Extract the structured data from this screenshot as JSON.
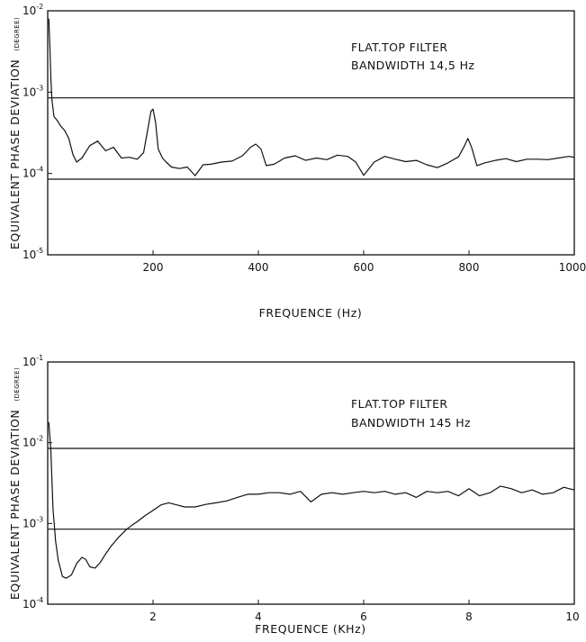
{
  "chart_data": [
    {
      "type": "line",
      "xlabel": "FREQUENCE (Hz)",
      "ylabel": "EQUIVALENT PHASE DEVIATION",
      "ylabel_unit": "(DEGREE)",
      "annotation": [
        "FLAT.TOP  FILTER",
        "BANDWIDTH  14,5 Hz"
      ],
      "log_y": true,
      "xlim": [
        0,
        1000
      ],
      "ylim": [
        1e-05,
        0.01
      ],
      "x_ticks": [
        {
          "value": 200,
          "label": "200"
        },
        {
          "value": 400,
          "label": "400"
        },
        {
          "value": 600,
          "label": "600"
        },
        {
          "value": 800,
          "label": "800"
        },
        {
          "value": 1000,
          "label": "1000"
        }
      ],
      "y_ticks": [
        {
          "value": 0.01,
          "base": "10",
          "exp": "-2"
        },
        {
          "value": 0.001,
          "base": "10",
          "exp": "-3"
        },
        {
          "value": 0.0001,
          "base": "10",
          "exp": "-4"
        },
        {
          "value": 1e-05,
          "base": "10",
          "exp": "-5"
        }
      ],
      "reference_lines": [
        0.00085,
        8.5e-05
      ],
      "x": [
        2,
        4,
        6,
        8,
        12,
        18,
        25,
        32,
        40,
        48,
        55,
        65,
        80,
        95,
        110,
        125,
        140,
        155,
        170,
        182,
        190,
        196,
        200,
        205,
        210,
        218,
        225,
        235,
        250,
        265,
        280,
        295,
        310,
        330,
        350,
        370,
        385,
        395,
        405,
        415,
        430,
        450,
        470,
        490,
        510,
        530,
        550,
        570,
        585,
        600,
        620,
        640,
        660,
        680,
        700,
        720,
        740,
        760,
        780,
        790,
        798,
        805,
        815,
        830,
        850,
        870,
        890,
        910,
        930,
        950,
        970,
        990,
        1000
      ],
      "y": [
        0.008,
        0.004,
        0.0015,
        0.0008,
        0.0005,
        0.00045,
        0.00038,
        0.00034,
        0.00027,
        0.00017,
        0.000138,
        0.000155,
        0.00022,
        0.00025,
        0.00019,
        0.00021,
        0.000155,
        0.000158,
        0.00015,
        0.00018,
        0.00035,
        0.00058,
        0.00062,
        0.00042,
        0.0002,
        0.000155,
        0.000138,
        0.00012,
        0.000115,
        0.00012,
        9.4e-05,
        0.000128,
        0.00013,
        0.000138,
        0.000142,
        0.000165,
        0.00021,
        0.00023,
        0.0002,
        0.000125,
        0.00013,
        0.000155,
        0.000165,
        0.000145,
        0.000155,
        0.000148,
        0.000168,
        0.000162,
        0.000138,
        9.5e-05,
        0.000138,
        0.000162,
        0.00015,
        0.00014,
        0.000145,
        0.000128,
        0.000118,
        0.000135,
        0.00016,
        0.00021,
        0.00027,
        0.00021,
        0.000125,
        0.000135,
        0.000145,
        0.000152,
        0.00014,
        0.00015,
        0.00015,
        0.000148,
        0.000155,
        0.000162,
        0.000158
      ]
    },
    {
      "type": "line",
      "xlabel": "FREQUENCE (KHz)",
      "ylabel": "EQUIVALENT PHASE DEVIATION",
      "ylabel_unit": "(DEGREE)",
      "annotation": [
        "FLAT.TOP   FILTER",
        "BANDWIDTH  145 Hz"
      ],
      "log_y": true,
      "xlim": [
        0,
        10
      ],
      "ylim": [
        0.0001,
        0.1
      ],
      "x_ticks": [
        {
          "value": 2,
          "label": "2"
        },
        {
          "value": 4,
          "label": "4"
        },
        {
          "value": 6,
          "label": "6"
        },
        {
          "value": 8,
          "label": "8"
        },
        {
          "value": 10,
          "label": "10"
        }
      ],
      "y_ticks": [
        {
          "value": 0.1,
          "base": "10",
          "exp": "-1"
        },
        {
          "value": 0.01,
          "base": "10",
          "exp": "-2"
        },
        {
          "value": 0.001,
          "base": "10",
          "exp": "-3"
        },
        {
          "value": 0.0001,
          "base": "10",
          "exp": "-4"
        }
      ],
      "reference_lines": [
        0.0085,
        0.00085
      ],
      "x": [
        0.02,
        0.06,
        0.1,
        0.15,
        0.2,
        0.28,
        0.35,
        0.45,
        0.55,
        0.65,
        0.72,
        0.8,
        0.9,
        1.0,
        1.1,
        1.2,
        1.35,
        1.5,
        1.6,
        1.7,
        1.85,
        2.0,
        2.15,
        2.3,
        2.45,
        2.6,
        2.8,
        3.0,
        3.2,
        3.4,
        3.6,
        3.8,
        4.0,
        4.2,
        4.4,
        4.6,
        4.8,
        5.0,
        5.2,
        5.4,
        5.6,
        5.8,
        6.0,
        6.2,
        6.4,
        6.6,
        6.8,
        7.0,
        7.2,
        7.4,
        7.6,
        7.8,
        8.0,
        8.2,
        8.4,
        8.6,
        8.8,
        9.0,
        9.2,
        9.4,
        9.6,
        9.8,
        10.0
      ],
      "y": [
        0.018,
        0.008,
        0.0015,
        0.0006,
        0.00035,
        0.00022,
        0.00021,
        0.00023,
        0.00032,
        0.00038,
        0.00036,
        0.00029,
        0.00028,
        0.00033,
        0.00042,
        0.00052,
        0.00068,
        0.00085,
        0.00095,
        0.00105,
        0.00125,
        0.00145,
        0.0017,
        0.0018,
        0.0017,
        0.0016,
        0.0016,
        0.00172,
        0.0018,
        0.0019,
        0.0021,
        0.0023,
        0.0023,
        0.0024,
        0.0024,
        0.0023,
        0.0025,
        0.00185,
        0.0023,
        0.0024,
        0.0023,
        0.0024,
        0.0025,
        0.0024,
        0.0025,
        0.0023,
        0.0024,
        0.0021,
        0.0025,
        0.0024,
        0.0025,
        0.0022,
        0.0027,
        0.0022,
        0.0024,
        0.0029,
        0.0027,
        0.0024,
        0.0026,
        0.0023,
        0.0024,
        0.0028,
        0.0026
      ]
    }
  ]
}
